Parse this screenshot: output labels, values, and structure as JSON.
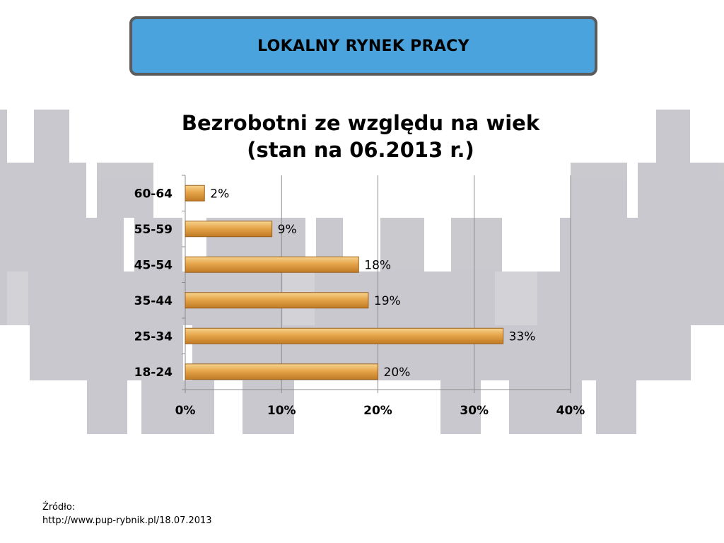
{
  "header": {
    "title": "LOKALNY RYNEK PRACY"
  },
  "chart_data": {
    "type": "bar",
    "orientation": "horizontal",
    "title_lines": [
      "Bezrobotni ze względu na wiek",
      "(stan na 06.2013 r.)"
    ],
    "categories": [
      "60-64",
      "55-59",
      "45-54",
      "35-44",
      "25-34",
      "18-24"
    ],
    "values": [
      2,
      9,
      18,
      19,
      33,
      20
    ],
    "value_labels": [
      "2%",
      "9%",
      "18%",
      "19%",
      "33%",
      "20%"
    ],
    "xlim": [
      0,
      40
    ],
    "xticks": [
      0,
      10,
      20,
      30,
      40
    ],
    "xtick_labels": [
      "0%",
      "10%",
      "20%",
      "30%",
      "40%"
    ],
    "grid": true,
    "legend": "none",
    "bar_color": "#e2a23f"
  },
  "source": {
    "label": "Źródło:",
    "url": "http://www.pup-rybnik.pl/18.07.2013"
  }
}
